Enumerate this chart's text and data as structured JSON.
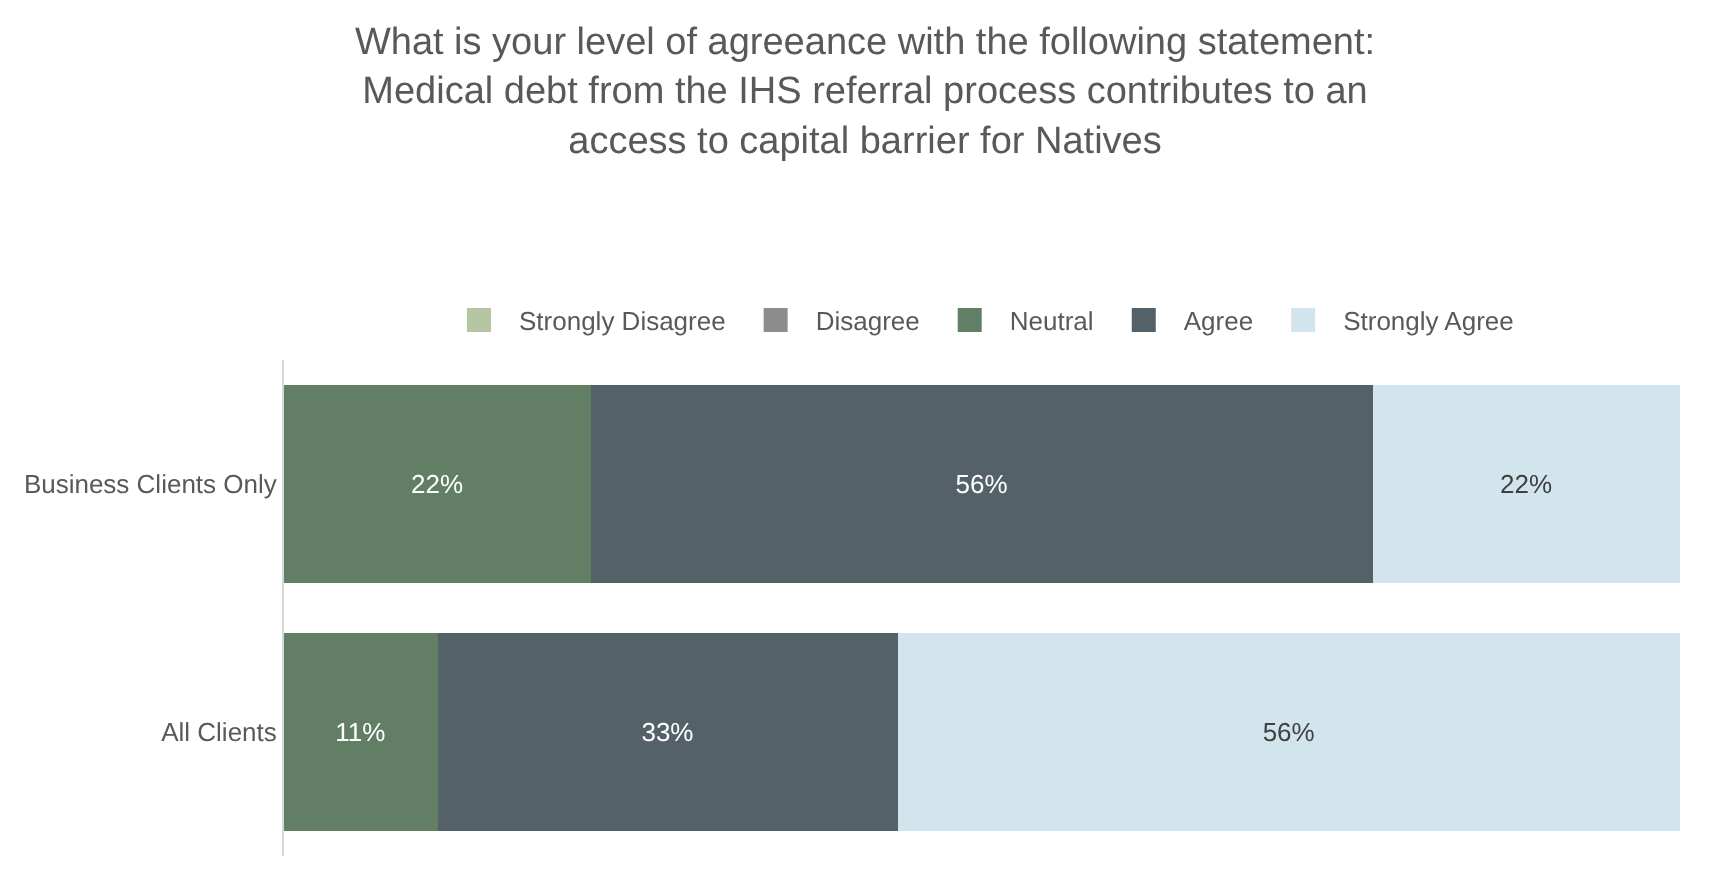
{
  "chart_data": {
    "type": "bar",
    "orientation": "horizontal",
    "stacked": true,
    "title": "What is your level of agreeance with the following statement:\nMedical debt from the IHS referral process contributes to an\naccess to capital barrier for Natives",
    "categories": [
      "Business Clients Only",
      "All Clients"
    ],
    "legend": "top",
    "tick_labels": "y",
    "series": [
      {
        "name": "Strongly Disagree",
        "color": "#b5c4a3",
        "values": [
          0,
          0
        ],
        "value_labels": [
          null,
          null
        ]
      },
      {
        "name": "Disagree",
        "color": "#8c8c8c",
        "values": [
          0,
          0
        ],
        "value_labels": [
          null,
          null
        ]
      },
      {
        "name": "Neutral",
        "color": "#627f66",
        "values": [
          22,
          11
        ],
        "value_labels": [
          "22%",
          "11%"
        ]
      },
      {
        "name": "Agree",
        "color": "#556168",
        "values": [
          56,
          33
        ],
        "value_labels": [
          "56%",
          "33%"
        ]
      },
      {
        "name": "Strongly Agree",
        "color": "#d3e5ec",
        "values": [
          22,
          56
        ],
        "value_labels": [
          "22%",
          "56%"
        ]
      }
    ]
  }
}
